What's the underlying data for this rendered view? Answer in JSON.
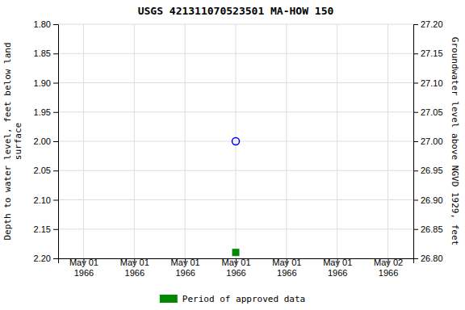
{
  "chart_data": {
    "type": "scatter",
    "title": "USGS 421311070523501 MA-HOW  150",
    "ylabel": "Depth to water level, feet below land\nsurface",
    "y2label": "Groundwater level above NGVD 1929, feet",
    "categories": [
      "May 01\n1966",
      "May 01\n1966",
      "May 01\n1966",
      "May 01\n1966",
      "May 01\n1966",
      "May 01\n1966",
      "May 02\n1966"
    ],
    "series": [
      {
        "color": "blue",
        "marker": "circle-open",
        "values": [
          null,
          null,
          null,
          2.0,
          null,
          null,
          null
        ]
      },
      {
        "name": "Period of approved data",
        "color": "#008800",
        "marker": "square",
        "values": [
          null,
          null,
          null,
          2.19,
          null,
          null,
          null
        ]
      }
    ],
    "ylim": [
      2.2,
      1.8
    ],
    "yticks": [
      {
        "value": 1.8,
        "label": "1.80"
      },
      1.85,
      {
        "value": 1.9,
        "label": "1.90"
      },
      1.95,
      {
        "value": 2.0,
        "label": "2.00"
      },
      2.05,
      {
        "value": 2.1,
        "label": "2.10"
      },
      2.15,
      {
        "value": 2.2,
        "label": "2.20"
      }
    ],
    "y2lim": [
      26.8,
      27.2
    ],
    "y2ticks": [
      {
        "value": 27.2,
        "label": "27.20"
      },
      27.15,
      {
        "value": 27.1,
        "label": "27.10"
      },
      27.05,
      {
        "value": 27.0,
        "label": "27.00"
      },
      26.95,
      {
        "value": 26.9,
        "label": "26.90"
      },
      26.85,
      {
        "value": 26.8,
        "label": "26.80"
      }
    ],
    "grid": true,
    "legend": "bottom"
  }
}
